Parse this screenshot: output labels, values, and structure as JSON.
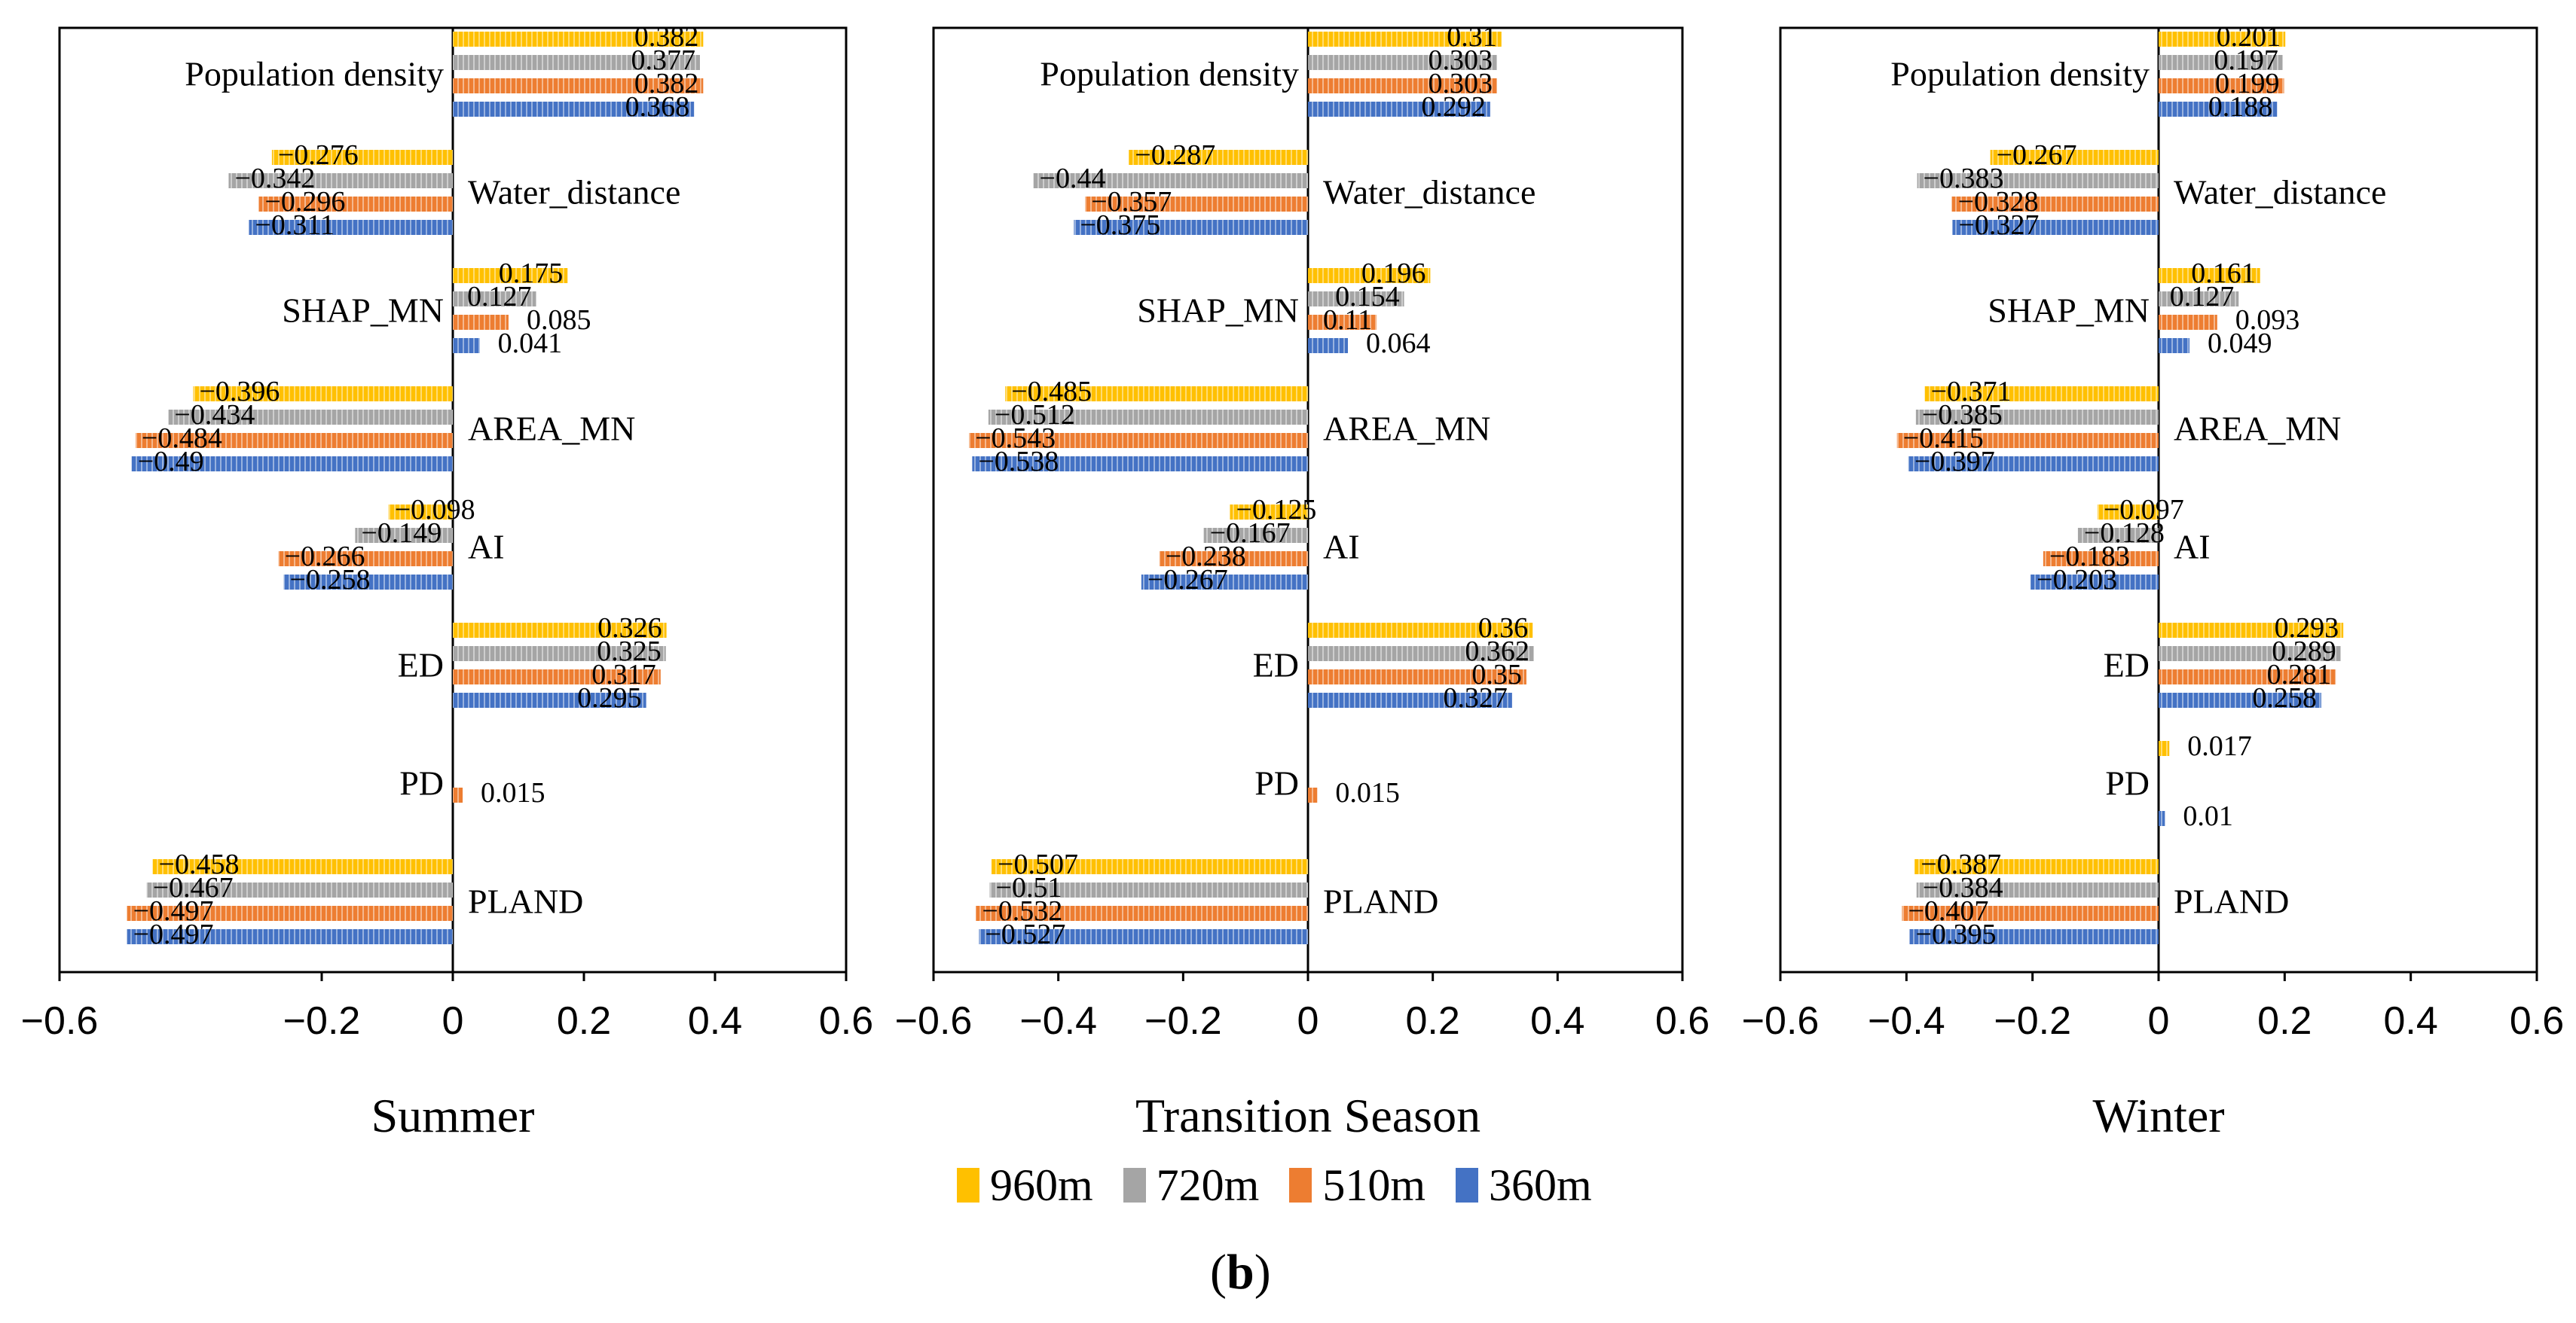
{
  "figure_label": {
    "open": "(",
    "letter": "b",
    "close": ")"
  },
  "legend": [
    {
      "label": "960m",
      "color": "#FFC000"
    },
    {
      "label": "720m",
      "color": "#A5A5A5"
    },
    {
      "label": "510m",
      "color": "#ED7D31"
    },
    {
      "label": "360m",
      "color": "#4472C4"
    }
  ],
  "chart_data": [
    {
      "type": "bar",
      "orientation": "horizontal",
      "title": "Summer",
      "categories": [
        "Population density",
        "Water_distance",
        "SHAP_MN",
        "AREA_MN",
        "AI",
        "ED",
        "PD",
        "PLAND"
      ],
      "xlim": [
        -0.6,
        0.6
      ],
      "xticks": [
        "−0.6",
        "−0.2",
        "0",
        "0.2",
        "0.4",
        "0.6"
      ],
      "series": [
        {
          "name": "960m",
          "values": [
            0.382,
            -0.276,
            0.175,
            -0.396,
            -0.098,
            0.326,
            null,
            -0.458
          ],
          "labels": [
            "0.382",
            "−0.276",
            "0.175",
            "−0.396",
            "−0.098",
            "0.326",
            "",
            "−0.458"
          ]
        },
        {
          "name": "720m",
          "values": [
            0.377,
            -0.342,
            0.127,
            -0.434,
            -0.149,
            0.325,
            null,
            -0.467
          ],
          "labels": [
            "0.377",
            "−0.342",
            "0.127",
            "−0.434",
            "−0.149",
            "0.325",
            "",
            "−0.467"
          ]
        },
        {
          "name": "510m",
          "values": [
            0.382,
            -0.296,
            0.085,
            -0.484,
            -0.266,
            0.317,
            0.015,
            -0.497
          ],
          "labels": [
            "0.382",
            "−0.296",
            "0.085",
            "−0.484",
            "−0.266",
            "0.317",
            "0.015",
            "−0.497"
          ]
        },
        {
          "name": "360m",
          "values": [
            0.368,
            -0.311,
            0.041,
            -0.49,
            -0.258,
            0.295,
            null,
            -0.497
          ],
          "labels": [
            "0.368",
            "−0.311",
            "0.041",
            "−0.49",
            "−0.258",
            "0.295",
            "",
            "−0.497"
          ]
        }
      ]
    },
    {
      "type": "bar",
      "orientation": "horizontal",
      "title": "Transition Season",
      "categories": [
        "Population density",
        "Water_distance",
        "SHAP_MN",
        "AREA_MN",
        "AI",
        "ED",
        "PD",
        "PLAND"
      ],
      "xlim": [
        -0.6,
        0.6
      ],
      "xticks": [
        "−0.6",
        "−0.4",
        "−0.2",
        "0",
        "0.2",
        "0.4",
        "0.6"
      ],
      "series": [
        {
          "name": "960m",
          "values": [
            0.31,
            -0.287,
            0.196,
            -0.485,
            -0.125,
            0.36,
            null,
            -0.507
          ],
          "labels": [
            "0.31",
            "−0.287",
            "0.196",
            "−0.485",
            "−0.125",
            "0.36",
            "",
            "−0.507"
          ]
        },
        {
          "name": "720m",
          "values": [
            0.303,
            -0.44,
            0.154,
            -0.512,
            -0.167,
            0.362,
            null,
            -0.51
          ],
          "labels": [
            "0.303",
            "−0.44",
            "0.154",
            "−0.512",
            "−0.167",
            "0.362",
            "",
            "−0.51"
          ]
        },
        {
          "name": "510m",
          "values": [
            0.303,
            -0.357,
            0.11,
            -0.543,
            -0.238,
            0.35,
            0.015,
            -0.532
          ],
          "labels": [
            "0.303",
            "−0.357",
            "0.11",
            "−0.543",
            "−0.238",
            "0.35",
            "0.015",
            "−0.532"
          ]
        },
        {
          "name": "360m",
          "values": [
            0.292,
            -0.375,
            0.064,
            -0.538,
            -0.267,
            0.327,
            null,
            -0.527
          ],
          "labels": [
            "0.292",
            "−0.375",
            "0.064",
            "−0.538",
            "−0.267",
            "0.327",
            "",
            "−0.527"
          ]
        }
      ]
    },
    {
      "type": "bar",
      "orientation": "horizontal",
      "title": "Winter",
      "categories": [
        "Population density",
        "Water_distance",
        "SHAP_MN",
        "AREA_MN",
        "AI",
        "ED",
        "PD",
        "PLAND"
      ],
      "xlim": [
        -0.6,
        0.6
      ],
      "xticks": [
        "−0.6",
        "−0.4",
        "−0.2",
        "0",
        "0.2",
        "0.4",
        "0.6"
      ],
      "series": [
        {
          "name": "960m",
          "values": [
            0.201,
            -0.267,
            0.161,
            -0.371,
            -0.097,
            0.293,
            0.017,
            -0.387
          ],
          "labels": [
            "0.201",
            "−0.267",
            "0.161",
            "−0.371",
            "−0.097",
            "0.293",
            "0.017",
            "−0.387"
          ]
        },
        {
          "name": "720m",
          "values": [
            0.197,
            -0.383,
            0.127,
            -0.385,
            -0.128,
            0.289,
            null,
            -0.384
          ],
          "labels": [
            "0.197",
            "−0.383",
            "0.127",
            "−0.385",
            "−0.128",
            "0.289",
            "",
            "−0.384"
          ]
        },
        {
          "name": "510m",
          "values": [
            0.199,
            -0.328,
            0.093,
            -0.415,
            -0.183,
            0.281,
            null,
            -0.407
          ],
          "labels": [
            "0.199",
            "−0.328",
            "0.093",
            "−0.415",
            "−0.183",
            "0.281",
            "",
            "−0.407"
          ]
        },
        {
          "name": "360m",
          "values": [
            0.188,
            -0.327,
            0.049,
            -0.397,
            -0.203,
            0.258,
            0.01,
            -0.395
          ],
          "labels": [
            "0.188",
            "−0.327",
            "0.049",
            "−0.397",
            "−0.203",
            "0.258",
            "0.01",
            "−0.395"
          ]
        }
      ]
    }
  ]
}
